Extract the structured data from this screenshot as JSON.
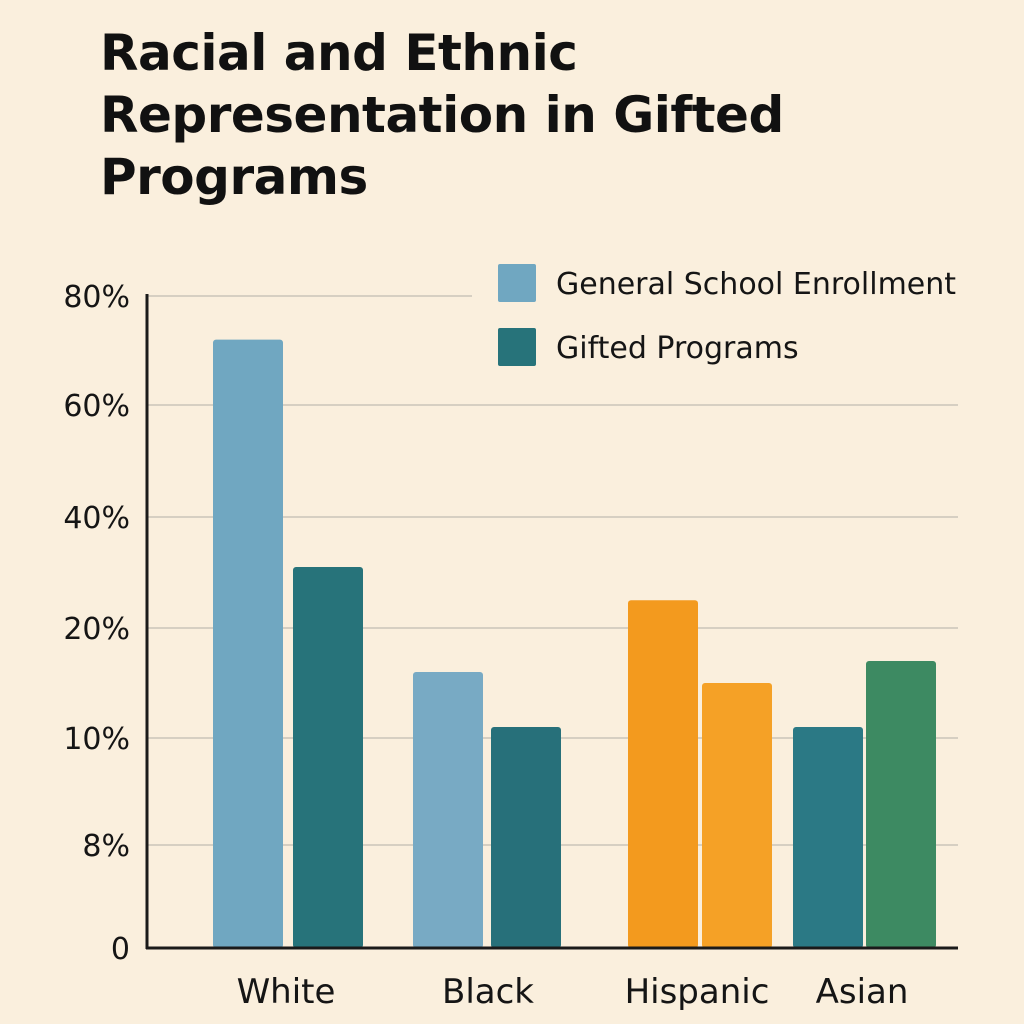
{
  "chart_data": {
    "type": "bar",
    "title": "Racial and Ethnic Representation in Gifted Programs",
    "xlabel": "",
    "ylabel": "",
    "categories": [
      "White",
      "Black",
      "Hispanic",
      "Asian"
    ],
    "series": [
      {
        "name": "General School Enrollment",
        "values": [
          72,
          16,
          25,
          11
        ],
        "colors": [
          "#70a7c1",
          "#78aac4",
          "#f39a1e",
          "#2b7985"
        ]
      },
      {
        "name": "Gifted Programs",
        "values": [
          31,
          11,
          15,
          17
        ],
        "colors": [
          "#27737a",
          "#27707a",
          "#f5a126",
          "#3d8a62"
        ]
      }
    ],
    "y_ticks": [
      "0",
      "8%",
      "10%",
      "20%",
      "40%",
      "60%",
      "80%"
    ],
    "y_tick_values": [
      0,
      8,
      10,
      20,
      40,
      60,
      80
    ],
    "grid": true,
    "legend": {
      "position": "top-right",
      "entries": [
        {
          "label": "General School Enrollment",
          "color": "#70a7c1"
        },
        {
          "label": "Gifted Programs",
          "color": "#27737a"
        }
      ]
    },
    "colors": {
      "background": "#faefdd",
      "grid": "#d6cfc2",
      "axis": "#1a1a1a"
    }
  }
}
